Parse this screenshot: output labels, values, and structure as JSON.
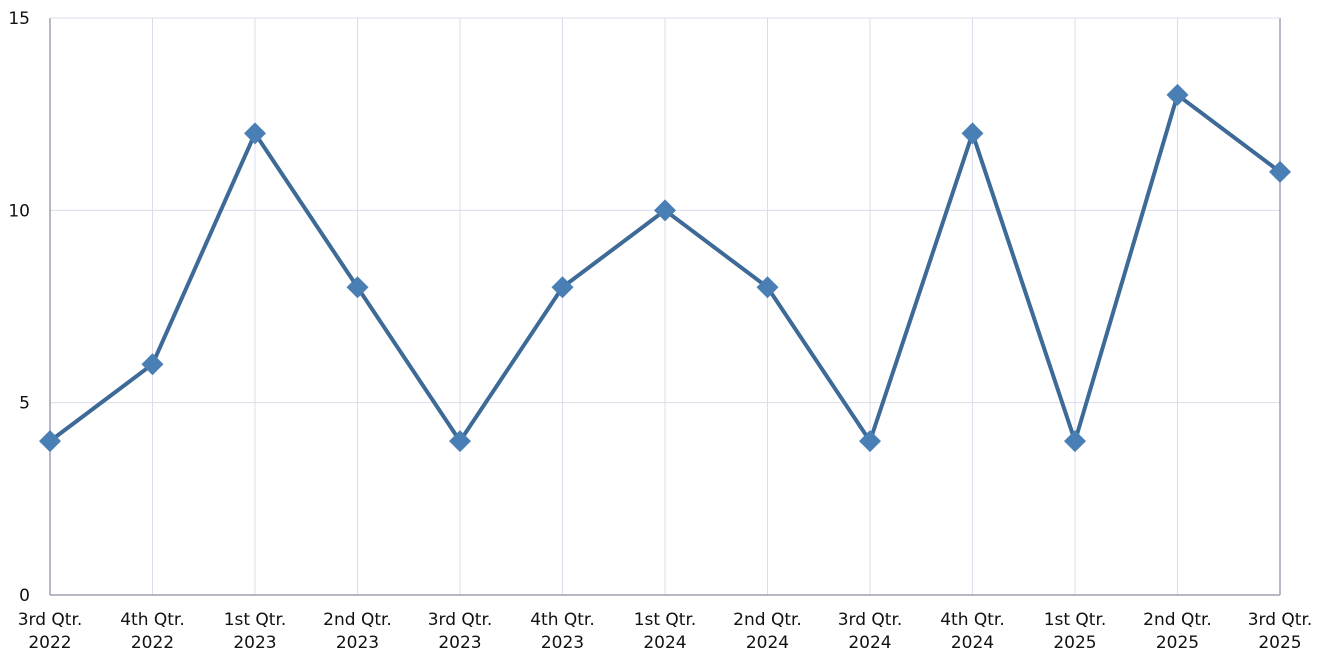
{
  "chart_data": {
    "type": "line",
    "categories": [
      "3rd Qtr. 2022",
      "4th Qtr. 2022",
      "1st Qtr. 2023",
      "2nd Qtr. 2023",
      "3rd Qtr. 2023",
      "4th Qtr. 2023",
      "1st Qtr. 2024",
      "2nd Qtr. 2024",
      "3rd Qtr. 2024",
      "4th Qtr. 2024",
      "1st Qtr. 2025",
      "2nd Qtr. 2025",
      "3rd Qtr. 2025"
    ],
    "values": [
      4,
      6,
      12,
      8,
      4,
      8,
      10,
      8,
      4,
      12,
      4,
      13,
      11
    ],
    "color": "#3d6a96",
    "marker_color": "#4a7fb5",
    "ylim": [
      0,
      15
    ],
    "yticks": [
      0,
      5,
      10,
      15
    ],
    "grid": true
  }
}
